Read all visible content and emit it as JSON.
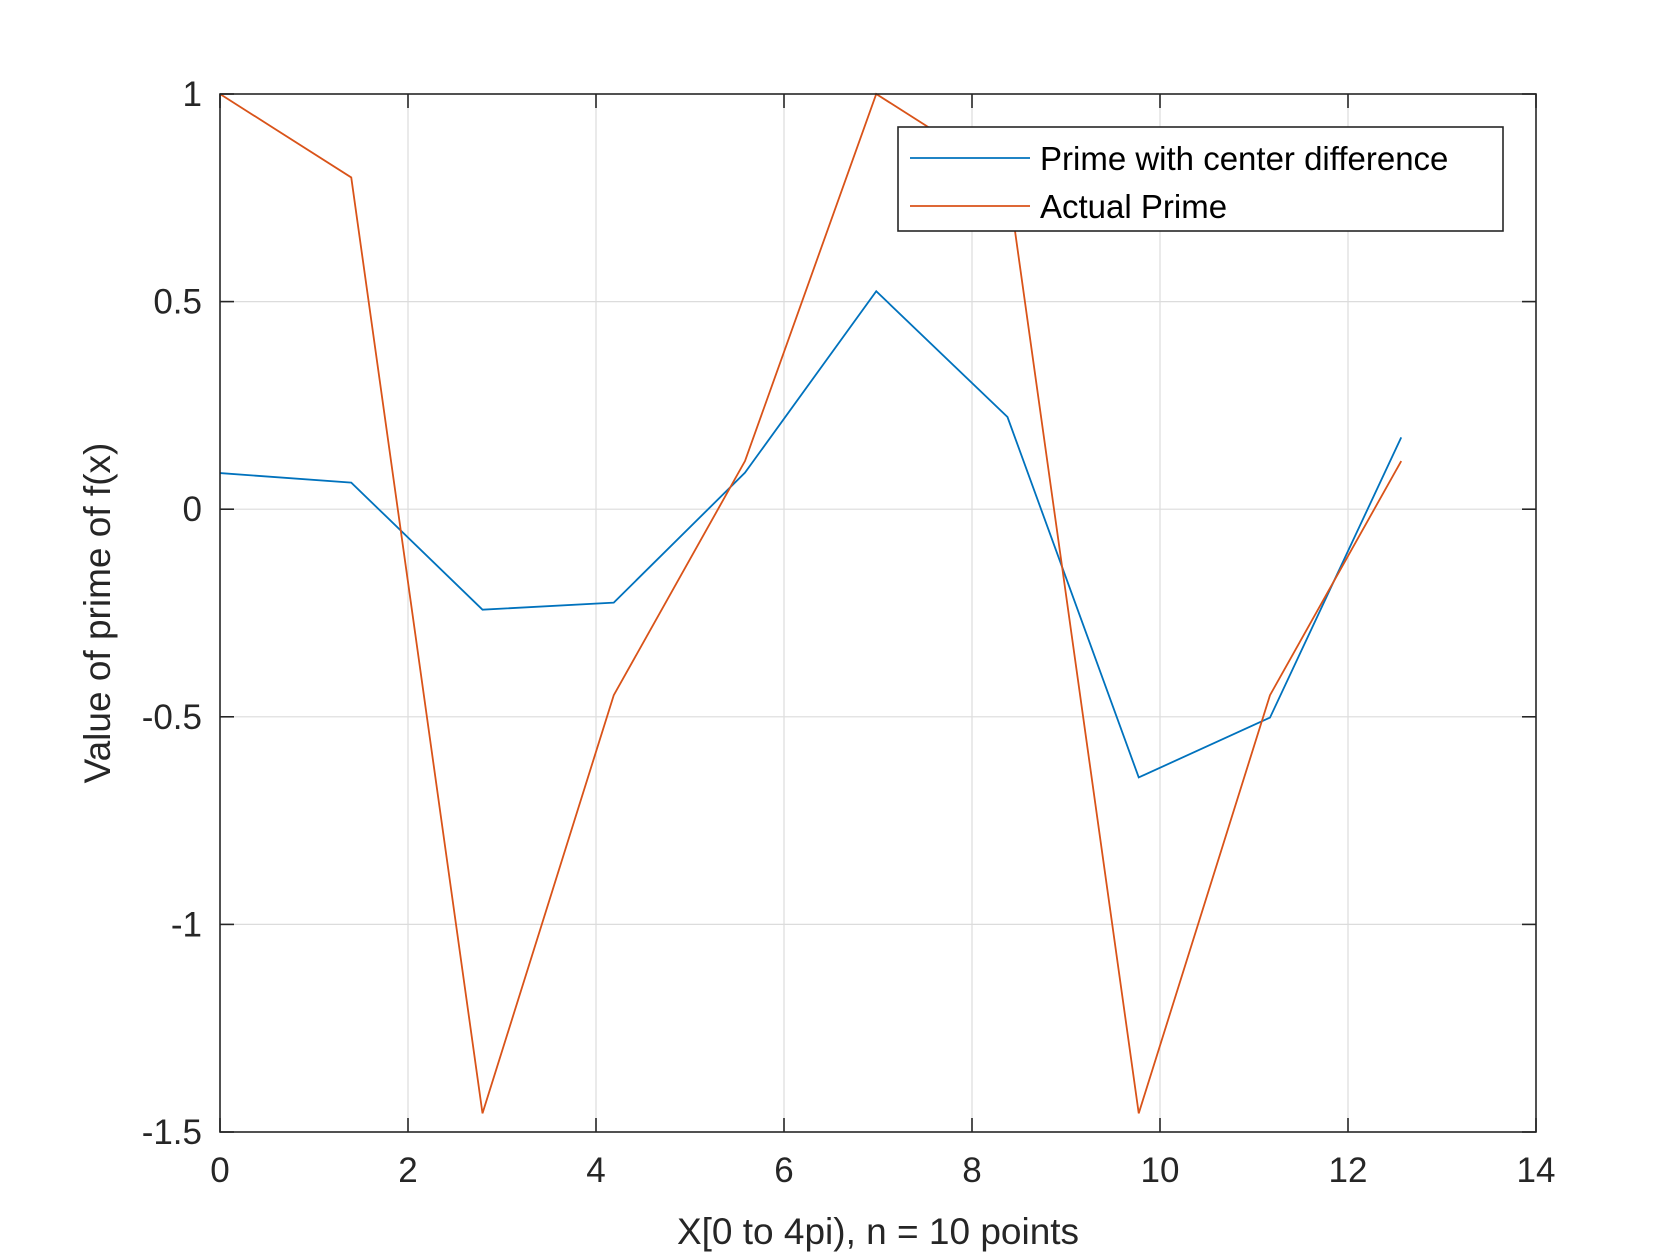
{
  "chart_data": {
    "type": "line",
    "title": "",
    "xlabel": "X[0 to 4pi), n = 10 points",
    "ylabel": "Value of prime of f(x)",
    "xlim": [
      0,
      14
    ],
    "ylim": [
      -1.5,
      1
    ],
    "xticks": [
      "0",
      "2",
      "4",
      "6",
      "8",
      "10",
      "12",
      "14"
    ],
    "yticks": [
      "-1.5",
      "-1",
      "-0.5",
      "0",
      "0.5",
      "1"
    ],
    "grid": true,
    "legend_position": "top-right",
    "x": [
      0,
      1.3963,
      2.7925,
      4.1888,
      5.5851,
      6.9813,
      8.3776,
      9.7738,
      11.1701,
      12.5664
    ],
    "series": [
      {
        "name": "Prime with center difference",
        "color": "#0072BD",
        "values": [
          0.087,
          0.064,
          -0.242,
          -0.225,
          0.088,
          0.525,
          0.222,
          -0.646,
          -0.502,
          0.173
        ]
      },
      {
        "name": "Actual Prime",
        "color": "#D95319",
        "values": [
          1.0,
          0.799,
          -1.455,
          -0.448,
          0.116,
          1.0,
          0.799,
          -1.455,
          -0.448,
          0.116
        ]
      }
    ]
  }
}
